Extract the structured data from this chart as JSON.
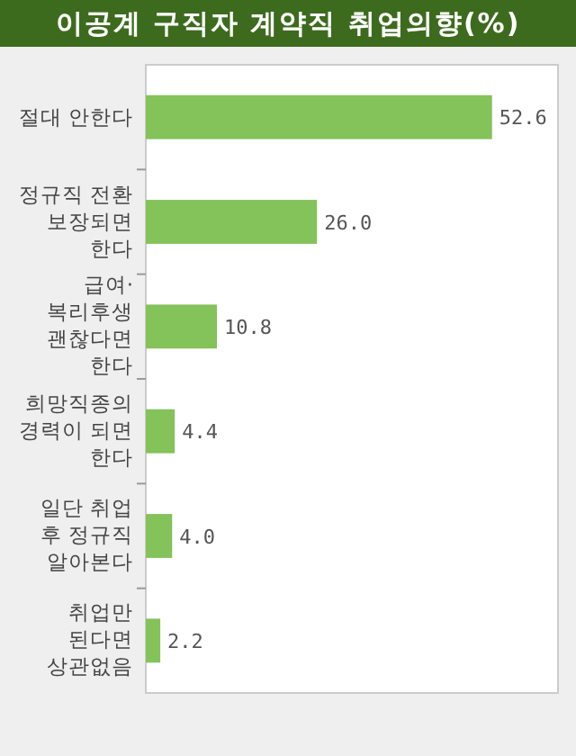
{
  "chart_data": {
    "type": "bar",
    "orientation": "horizontal",
    "title": "이공계 구직자 계약직 취업의향(%)",
    "categories": [
      "절대 안한다",
      "정규직 전환 보장되면 한다",
      "급여·복리후생 괜찮다면 한다",
      "희망직종의 경력이 되면 한다",
      "일단 취업 후 정규직 알아본다",
      "취업만 된다면 상관없음"
    ],
    "values": [
      52.6,
      26.0,
      10.8,
      4.4,
      4.0,
      2.2
    ],
    "value_labels": [
      "52.6",
      "26.0",
      "10.8",
      "4.4",
      "4.0",
      "2.2"
    ],
    "color": "#84c25a"
  }
}
